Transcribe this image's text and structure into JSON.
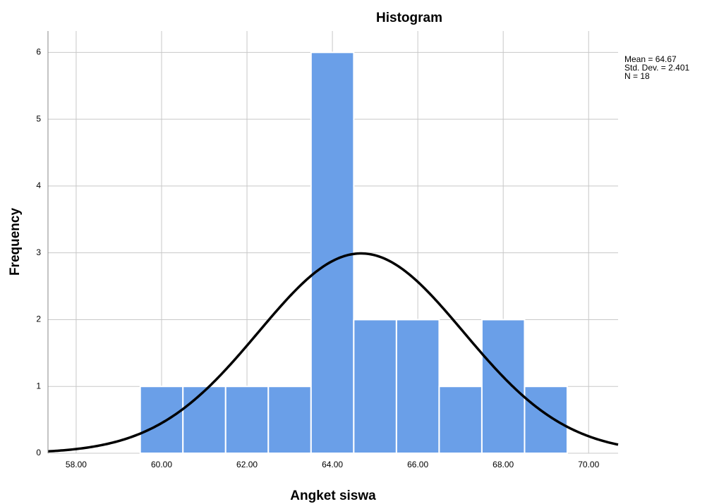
{
  "chart_data": {
    "type": "histogram",
    "title": "Histogram",
    "x_label": "Angket siswa",
    "y_label": "Frequency",
    "bins": [
      59.5,
      60.5,
      61.5,
      62.5,
      63.5,
      64.5,
      65.5,
      66.5,
      67.5,
      68.5,
      69.5
    ],
    "values": [
      1,
      1,
      1,
      1,
      6,
      2,
      2,
      1,
      2,
      1
    ],
    "color": "#6a9fe8",
    "xlim": [
      57.34,
      70.69
    ],
    "ylim": [
      0,
      6.32
    ],
    "xticks": [
      {
        "value": 58,
        "label": "58.00"
      },
      {
        "value": 60,
        "label": "60.00"
      },
      {
        "value": 62,
        "label": "62.00"
      },
      {
        "value": 64,
        "label": "64.00"
      },
      {
        "value": 66,
        "label": "66.00"
      },
      {
        "value": 68,
        "label": "68.00"
      },
      {
        "value": 70,
        "label": "70.00"
      }
    ],
    "yticks": [
      0,
      1,
      2,
      3,
      4,
      5,
      6
    ],
    "grid": true,
    "normal_curve": {
      "color": "#000000",
      "mean": {
        "value": 64.67,
        "label": "Mean = 64.67"
      },
      "std_dev": {
        "value": 2.401,
        "label": "Std. Dev. = 2.401"
      },
      "n": {
        "value": 18,
        "label": "N = 18"
      }
    }
  }
}
